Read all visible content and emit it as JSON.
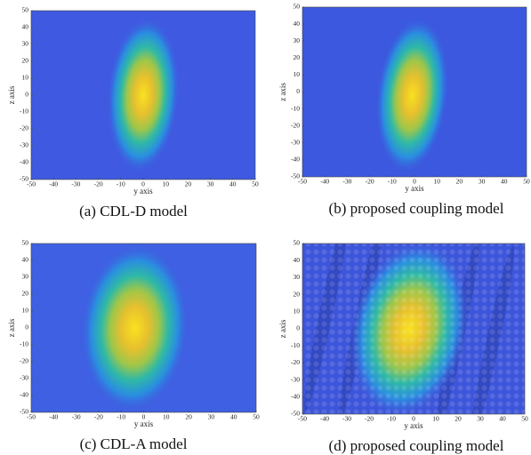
{
  "chart_data": [
    {
      "type": "heatmap",
      "caption": "(a) CDL-D model",
      "xlabel": "y axis",
      "ylabel": "z axis",
      "xlim": [
        -50,
        50
      ],
      "ylim": [
        -50,
        50
      ],
      "xticks": [
        -50,
        -40,
        -30,
        -20,
        -10,
        0,
        10,
        20,
        30,
        40,
        50
      ],
      "yticks": [
        -50,
        -40,
        -30,
        -20,
        -10,
        0,
        10,
        20,
        30,
        40,
        50
      ]
    },
    {
      "type": "heatmap",
      "caption": "(b) proposed coupling model",
      "xlabel": "y axis",
      "ylabel": "z axis",
      "xlim": [
        -50,
        50
      ],
      "ylim": [
        -50,
        50
      ],
      "xticks": [
        -50,
        -40,
        -30,
        -20,
        -10,
        0,
        10,
        20,
        30,
        40,
        50
      ],
      "yticks": [
        -50,
        -40,
        -30,
        -20,
        -10,
        0,
        10,
        20,
        30,
        40,
        50
      ]
    },
    {
      "type": "heatmap",
      "caption": "(c) CDL-A model",
      "xlabel": "y axis",
      "ylabel": "z axis",
      "xlim": [
        -50,
        50
      ],
      "ylim": [
        -50,
        50
      ],
      "xticks": [
        -50,
        -40,
        -30,
        -20,
        -10,
        0,
        10,
        20,
        30,
        40,
        50
      ],
      "yticks": [
        -50,
        -40,
        -30,
        -20,
        -10,
        0,
        10,
        20,
        30,
        40,
        50
      ]
    },
    {
      "type": "heatmap",
      "caption": "(d) proposed coupling model",
      "xlabel": "y axis",
      "ylabel": "z axis",
      "xlim": [
        -50,
        50
      ],
      "ylim": [
        -50,
        50
      ],
      "xticks": [
        -50,
        -40,
        -30,
        -20,
        -10,
        0,
        10,
        20,
        30,
        40,
        50
      ],
      "yticks": [
        -50,
        -40,
        -30,
        -20,
        -10,
        0,
        10,
        20,
        30,
        40,
        50
      ]
    }
  ]
}
